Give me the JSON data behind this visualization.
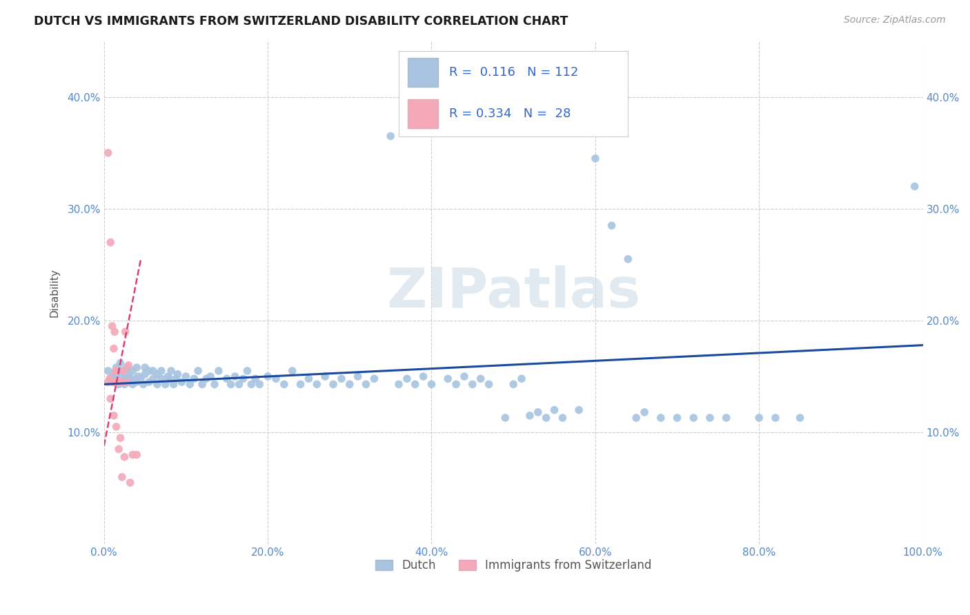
{
  "title": "DUTCH VS IMMIGRANTS FROM SWITZERLAND DISABILITY CORRELATION CHART",
  "source": "Source: ZipAtlas.com",
  "ylabel": "Disability",
  "xlim": [
    0.0,
    1.0
  ],
  "ylim": [
    0.0,
    0.45
  ],
  "x_tick_labels": [
    "0.0%",
    "20.0%",
    "40.0%",
    "60.0%",
    "80.0%",
    "100.0%"
  ],
  "x_tick_positions": [
    0.0,
    0.2,
    0.4,
    0.6,
    0.8,
    1.0
  ],
  "y_tick_labels": [
    "10.0%",
    "20.0%",
    "30.0%",
    "40.0%"
  ],
  "y_tick_positions": [
    0.1,
    0.2,
    0.3,
    0.4
  ],
  "legend_r_dutch": "0.116",
  "legend_n_dutch": "112",
  "legend_r_swiss": "0.334",
  "legend_n_swiss": "28",
  "dutch_color": "#a8c4e0",
  "swiss_color": "#f4a8b8",
  "dutch_line_color": "#1a4a9e",
  "swiss_line_color": "#d94070",
  "grid_color": "#cccccc",
  "background_color": "#ffffff",
  "watermark_text": "ZIPatlas",
  "dutch_x": [
    0.005,
    0.008,
    0.01,
    0.012,
    0.015,
    0.015,
    0.018,
    0.018,
    0.02,
    0.02,
    0.022,
    0.022,
    0.025,
    0.025,
    0.028,
    0.028,
    0.03,
    0.03,
    0.032,
    0.035,
    0.035,
    0.038,
    0.04,
    0.04,
    0.042,
    0.045,
    0.048,
    0.05,
    0.05,
    0.055,
    0.055,
    0.06,
    0.06,
    0.065,
    0.065,
    0.07,
    0.07,
    0.075,
    0.078,
    0.08,
    0.082,
    0.085,
    0.088,
    0.09,
    0.095,
    0.1,
    0.105,
    0.11,
    0.115,
    0.12,
    0.125,
    0.13,
    0.135,
    0.14,
    0.15,
    0.155,
    0.16,
    0.165,
    0.17,
    0.175,
    0.18,
    0.185,
    0.19,
    0.2,
    0.21,
    0.22,
    0.23,
    0.24,
    0.25,
    0.26,
    0.27,
    0.28,
    0.29,
    0.3,
    0.31,
    0.32,
    0.33,
    0.35,
    0.36,
    0.37,
    0.38,
    0.39,
    0.4,
    0.42,
    0.43,
    0.44,
    0.45,
    0.46,
    0.47,
    0.49,
    0.5,
    0.51,
    0.52,
    0.53,
    0.54,
    0.55,
    0.56,
    0.58,
    0.6,
    0.62,
    0.64,
    0.65,
    0.66,
    0.68,
    0.7,
    0.72,
    0.74,
    0.76,
    0.8,
    0.82,
    0.85,
    0.99
  ],
  "dutch_y": [
    0.155,
    0.148,
    0.15,
    0.145,
    0.152,
    0.158,
    0.143,
    0.155,
    0.148,
    0.162,
    0.145,
    0.155,
    0.143,
    0.15,
    0.148,
    0.158,
    0.145,
    0.152,
    0.148,
    0.143,
    0.155,
    0.148,
    0.145,
    0.158,
    0.15,
    0.148,
    0.143,
    0.152,
    0.158,
    0.145,
    0.155,
    0.148,
    0.155,
    0.143,
    0.152,
    0.148,
    0.155,
    0.143,
    0.15,
    0.148,
    0.155,
    0.143,
    0.148,
    0.152,
    0.145,
    0.15,
    0.143,
    0.148,
    0.155,
    0.143,
    0.148,
    0.15,
    0.143,
    0.155,
    0.148,
    0.143,
    0.15,
    0.143,
    0.148,
    0.155,
    0.143,
    0.148,
    0.143,
    0.15,
    0.148,
    0.143,
    0.155,
    0.143,
    0.148,
    0.143,
    0.15,
    0.143,
    0.148,
    0.143,
    0.15,
    0.143,
    0.148,
    0.365,
    0.143,
    0.148,
    0.143,
    0.15,
    0.143,
    0.148,
    0.143,
    0.15,
    0.143,
    0.148,
    0.143,
    0.113,
    0.143,
    0.148,
    0.115,
    0.118,
    0.113,
    0.12,
    0.113,
    0.12,
    0.345,
    0.285,
    0.255,
    0.113,
    0.118,
    0.113,
    0.113,
    0.113,
    0.113,
    0.113,
    0.113,
    0.113,
    0.113,
    0.32
  ],
  "swiss_x": [
    0.005,
    0.005,
    0.007,
    0.008,
    0.008,
    0.01,
    0.01,
    0.012,
    0.012,
    0.013,
    0.014,
    0.015,
    0.015,
    0.016,
    0.018,
    0.018,
    0.02,
    0.02,
    0.022,
    0.022,
    0.024,
    0.025,
    0.026,
    0.028,
    0.03,
    0.032,
    0.035,
    0.04
  ],
  "swiss_y": [
    0.145,
    0.35,
    0.148,
    0.27,
    0.13,
    0.195,
    0.145,
    0.175,
    0.115,
    0.19,
    0.155,
    0.155,
    0.105,
    0.145,
    0.145,
    0.085,
    0.145,
    0.095,
    0.145,
    0.06,
    0.155,
    0.078,
    0.19,
    0.145,
    0.16,
    0.055,
    0.08,
    0.08
  ],
  "dutch_line_x": [
    0.0,
    1.0
  ],
  "dutch_line_y": [
    0.143,
    0.178
  ],
  "swiss_line_x": [
    0.0,
    0.045
  ],
  "swiss_line_y": [
    0.088,
    0.255
  ]
}
